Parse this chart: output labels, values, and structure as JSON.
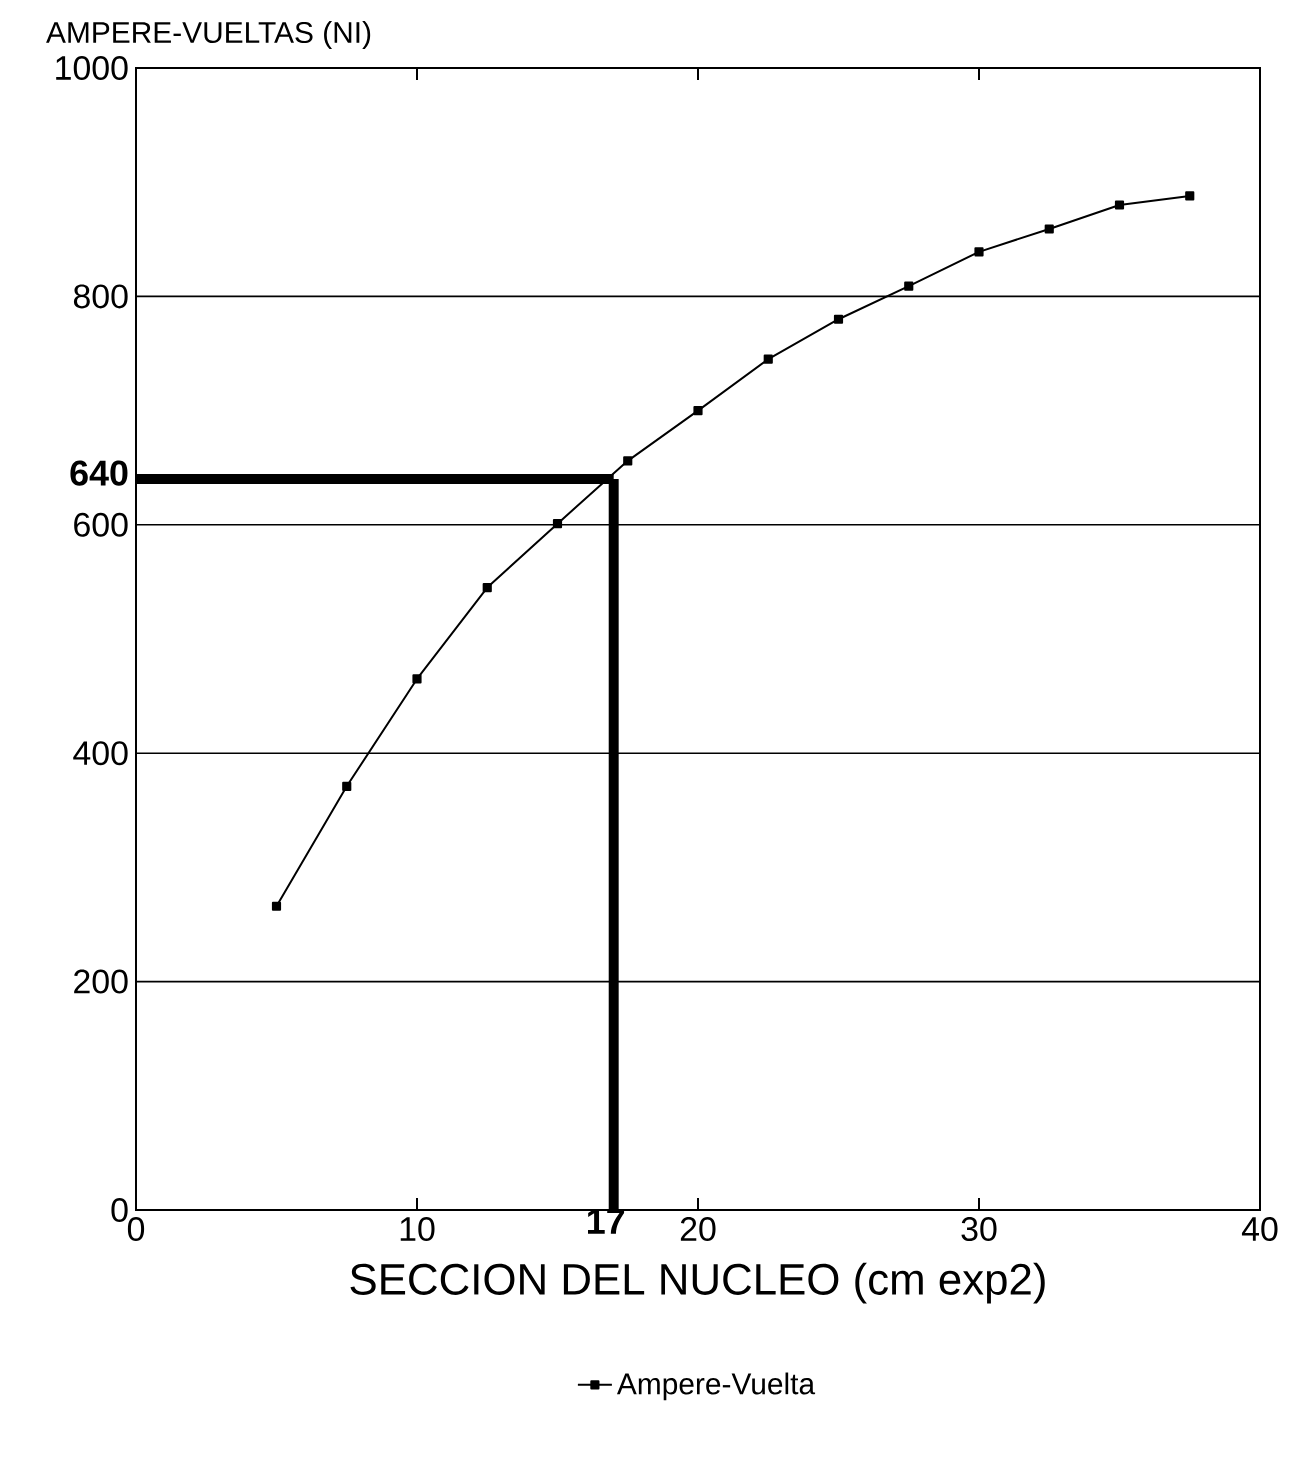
{
  "chart_data": {
    "type": "line",
    "xlabel": "SECCION DEL NUCLEO (cm exp2)",
    "ylabel": "AMPERE-VUELTAS (NI)",
    "x": [
      5,
      7.5,
      10,
      12.5,
      15,
      17.5,
      20,
      22.5,
      25,
      27.5,
      30,
      32.5,
      35,
      37.5
    ],
    "series": [
      {
        "name": "Ampere-Vuelta",
        "color": "#000000",
        "values": [
          266,
          371,
          465,
          545,
          601,
          656,
          700,
          745,
          780,
          809,
          839,
          859,
          880,
          888
        ]
      }
    ],
    "xlim": [
      0,
      40
    ],
    "xticks": [
      0,
      10,
      20,
      30,
      40
    ],
    "ylim": [
      0,
      1000
    ],
    "yticks": [
      0,
      200,
      400,
      600,
      800,
      1000
    ],
    "ref_lines": [
      {
        "axis": "x",
        "value": 17,
        "label": "17",
        "color": "#000000"
      },
      {
        "axis": "y",
        "value": 640,
        "label": "640",
        "color": "#000000"
      }
    ],
    "grid": "y",
    "legend": "bottom",
    "marker": "square",
    "line_style": "solid"
  }
}
